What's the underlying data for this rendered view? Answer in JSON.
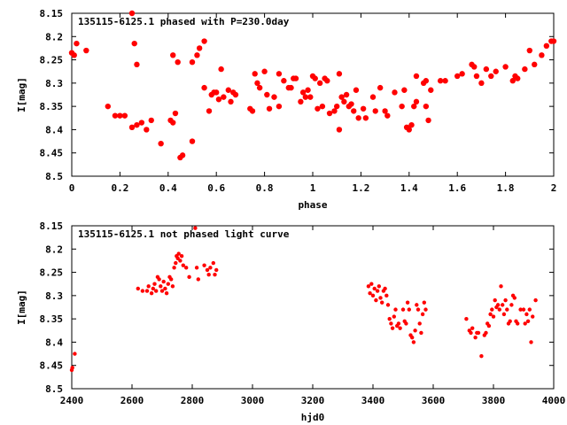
{
  "chart_data": [
    {
      "type": "scatter",
      "title": "135115-6125.1 phased with P=230.0day",
      "xlabel": "phase",
      "ylabel": "I[mag]",
      "xlim": [
        0,
        2
      ],
      "ylim": [
        8.15,
        8.5
      ],
      "y_inverted": true,
      "x_ticks": [
        "0",
        "0.2",
        "0.4",
        "0.6",
        "0.8",
        "1",
        "1.2",
        "1.4",
        "1.6",
        "1.8",
        "2"
      ],
      "y_ticks": [
        "8.15",
        "8.2",
        "8.25",
        "8.3",
        "8.35",
        "8.4",
        "8.45",
        "8.5"
      ],
      "marker_color": "#ff0000",
      "points": [
        [
          0.0,
          8.235
        ],
        [
          0.01,
          8.24
        ],
        [
          0.02,
          8.215
        ],
        [
          0.06,
          8.23
        ],
        [
          0.15,
          8.35
        ],
        [
          0.18,
          8.37
        ],
        [
          0.2,
          8.37
        ],
        [
          0.22,
          8.37
        ],
        [
          0.25,
          8.15
        ],
        [
          0.26,
          8.215
        ],
        [
          0.27,
          8.26
        ],
        [
          0.25,
          8.395
        ],
        [
          0.27,
          8.39
        ],
        [
          0.29,
          8.385
        ],
        [
          0.31,
          8.4
        ],
        [
          0.33,
          8.38
        ],
        [
          0.37,
          8.43
        ],
        [
          0.41,
          8.38
        ],
        [
          0.42,
          8.385
        ],
        [
          0.43,
          8.365
        ],
        [
          0.42,
          8.24
        ],
        [
          0.44,
          8.255
        ],
        [
          0.45,
          8.46
        ],
        [
          0.46,
          8.455
        ],
        [
          0.5,
          8.425
        ],
        [
          0.5,
          8.255
        ],
        [
          0.52,
          8.24
        ],
        [
          0.53,
          8.225
        ],
        [
          0.55,
          8.21
        ],
        [
          0.55,
          8.31
        ],
        [
          0.57,
          8.36
        ],
        [
          0.58,
          8.325
        ],
        [
          0.59,
          8.32
        ],
        [
          0.6,
          8.32
        ],
        [
          0.61,
          8.335
        ],
        [
          0.62,
          8.27
        ],
        [
          0.63,
          8.33
        ],
        [
          0.65,
          8.315
        ],
        [
          0.66,
          8.34
        ],
        [
          0.67,
          8.32
        ],
        [
          0.68,
          8.325
        ],
        [
          0.74,
          8.355
        ],
        [
          0.75,
          8.36
        ],
        [
          0.76,
          8.28
        ],
        [
          0.77,
          8.3
        ],
        [
          0.78,
          8.31
        ],
        [
          0.8,
          8.275
        ],
        [
          0.81,
          8.325
        ],
        [
          0.82,
          8.355
        ],
        [
          0.84,
          8.33
        ],
        [
          0.86,
          8.35
        ],
        [
          0.86,
          8.28
        ],
        [
          0.88,
          8.295
        ],
        [
          0.9,
          8.31
        ],
        [
          0.91,
          8.31
        ],
        [
          0.92,
          8.29
        ],
        [
          0.93,
          8.29
        ],
        [
          0.95,
          8.34
        ],
        [
          0.96,
          8.32
        ],
        [
          0.97,
          8.33
        ],
        [
          0.98,
          8.315
        ],
        [
          0.99,
          8.33
        ],
        [
          1.0,
          8.285
        ],
        [
          1.01,
          8.29
        ],
        [
          1.02,
          8.355
        ],
        [
          1.03,
          8.3
        ],
        [
          1.04,
          8.35
        ],
        [
          1.05,
          8.29
        ],
        [
          1.06,
          8.295
        ],
        [
          1.07,
          8.365
        ],
        [
          1.09,
          8.36
        ],
        [
          1.1,
          8.35
        ],
        [
          1.11,
          8.28
        ],
        [
          1.11,
          8.4
        ],
        [
          1.12,
          8.33
        ],
        [
          1.13,
          8.34
        ],
        [
          1.14,
          8.325
        ],
        [
          1.15,
          8.35
        ],
        [
          1.16,
          8.345
        ],
        [
          1.17,
          8.36
        ],
        [
          1.18,
          8.315
        ],
        [
          1.19,
          8.375
        ],
        [
          1.21,
          8.355
        ],
        [
          1.22,
          8.375
        ],
        [
          1.25,
          8.33
        ],
        [
          1.26,
          8.36
        ],
        [
          1.28,
          8.31
        ],
        [
          1.3,
          8.36
        ],
        [
          1.31,
          8.37
        ],
        [
          1.34,
          8.32
        ],
        [
          1.37,
          8.35
        ],
        [
          1.38,
          8.315
        ],
        [
          1.39,
          8.395
        ],
        [
          1.4,
          8.4
        ],
        [
          1.41,
          8.39
        ],
        [
          1.42,
          8.35
        ],
        [
          1.43,
          8.34
        ],
        [
          1.43,
          8.285
        ],
        [
          1.46,
          8.3
        ],
        [
          1.47,
          8.35
        ],
        [
          1.48,
          8.38
        ],
        [
          1.49,
          8.315
        ],
        [
          1.47,
          8.295
        ],
        [
          1.53,
          8.295
        ],
        [
          1.55,
          8.295
        ],
        [
          1.6,
          8.285
        ],
        [
          1.62,
          8.28
        ],
        [
          1.66,
          8.26
        ],
        [
          1.67,
          8.265
        ],
        [
          1.68,
          8.285
        ],
        [
          1.7,
          8.3
        ],
        [
          1.72,
          8.27
        ],
        [
          1.74,
          8.285
        ],
        [
          1.76,
          8.275
        ],
        [
          1.8,
          8.265
        ],
        [
          1.83,
          8.295
        ],
        [
          1.84,
          8.285
        ],
        [
          1.85,
          8.29
        ],
        [
          1.88,
          8.27
        ],
        [
          1.9,
          8.23
        ],
        [
          1.92,
          8.26
        ],
        [
          1.95,
          8.24
        ],
        [
          1.97,
          8.22
        ],
        [
          1.99,
          8.21
        ],
        [
          2.0,
          8.21
        ]
      ]
    },
    {
      "type": "scatter",
      "title": "135115-6125.1 not phased light curve",
      "xlabel": "hjd0",
      "ylabel": "I[mag]",
      "xlim": [
        2400,
        4000
      ],
      "ylim": [
        8.15,
        8.5
      ],
      "y_inverted": true,
      "x_ticks": [
        "2400",
        "2600",
        "2800",
        "3000",
        "3200",
        "3400",
        "3600",
        "3800",
        "4000"
      ],
      "y_ticks": [
        "8.15",
        "8.2",
        "8.25",
        "8.3",
        "8.35",
        "8.4",
        "8.45",
        "8.5"
      ],
      "marker_color": "#ff0000",
      "points": [
        [
          2400,
          8.46
        ],
        [
          2402,
          8.455
        ],
        [
          2410,
          8.425
        ],
        [
          2620,
          8.285
        ],
        [
          2635,
          8.29
        ],
        [
          2650,
          8.29
        ],
        [
          2655,
          8.28
        ],
        [
          2665,
          8.295
        ],
        [
          2670,
          8.285
        ],
        [
          2675,
          8.275
        ],
        [
          2680,
          8.29
        ],
        [
          2685,
          8.26
        ],
        [
          2690,
          8.265
        ],
        [
          2695,
          8.28
        ],
        [
          2700,
          8.29
        ],
        [
          2705,
          8.27
        ],
        [
          2710,
          8.285
        ],
        [
          2715,
          8.295
        ],
        [
          2720,
          8.275
        ],
        [
          2725,
          8.26
        ],
        [
          2730,
          8.265
        ],
        [
          2735,
          8.28
        ],
        [
          2740,
          8.24
        ],
        [
          2745,
          8.23
        ],
        [
          2748,
          8.215
        ],
        [
          2752,
          8.22
        ],
        [
          2755,
          8.21
        ],
        [
          2760,
          8.225
        ],
        [
          2765,
          8.215
        ],
        [
          2770,
          8.235
        ],
        [
          2780,
          8.24
        ],
        [
          2790,
          8.26
        ],
        [
          2810,
          8.155
        ],
        [
          2815,
          8.24
        ],
        [
          2820,
          8.265
        ],
        [
          2840,
          8.235
        ],
        [
          2850,
          8.245
        ],
        [
          2855,
          8.255
        ],
        [
          2860,
          8.24
        ],
        [
          2870,
          8.23
        ],
        [
          2875,
          8.255
        ],
        [
          2880,
          8.245
        ],
        [
          3385,
          8.28
        ],
        [
          3390,
          8.295
        ],
        [
          3395,
          8.275
        ],
        [
          3400,
          8.3
        ],
        [
          3405,
          8.285
        ],
        [
          3410,
          8.31
        ],
        [
          3415,
          8.29
        ],
        [
          3420,
          8.28
        ],
        [
          3425,
          8.305
        ],
        [
          3430,
          8.315
        ],
        [
          3435,
          8.29
        ],
        [
          3440,
          8.285
        ],
        [
          3445,
          8.3
        ],
        [
          3450,
          8.32
        ],
        [
          3455,
          8.35
        ],
        [
          3460,
          8.36
        ],
        [
          3465,
          8.37
        ],
        [
          3470,
          8.345
        ],
        [
          3475,
          8.33
        ],
        [
          3480,
          8.365
        ],
        [
          3485,
          8.36
        ],
        [
          3490,
          8.37
        ],
        [
          3500,
          8.33
        ],
        [
          3505,
          8.355
        ],
        [
          3510,
          8.36
        ],
        [
          3515,
          8.315
        ],
        [
          3520,
          8.33
        ],
        [
          3525,
          8.385
        ],
        [
          3530,
          8.39
        ],
        [
          3535,
          8.4
        ],
        [
          3540,
          8.375
        ],
        [
          3545,
          8.32
        ],
        [
          3550,
          8.33
        ],
        [
          3555,
          8.36
        ],
        [
          3560,
          8.38
        ],
        [
          3565,
          8.34
        ],
        [
          3570,
          8.315
        ],
        [
          3575,
          8.33
        ],
        [
          3710,
          8.35
        ],
        [
          3720,
          8.375
        ],
        [
          3725,
          8.38
        ],
        [
          3730,
          8.37
        ],
        [
          3740,
          8.39
        ],
        [
          3745,
          8.38
        ],
        [
          3750,
          8.38
        ],
        [
          3760,
          8.43
        ],
        [
          3770,
          8.385
        ],
        [
          3775,
          8.38
        ],
        [
          3780,
          8.36
        ],
        [
          3785,
          8.365
        ],
        [
          3790,
          8.34
        ],
        [
          3795,
          8.33
        ],
        [
          3800,
          8.345
        ],
        [
          3805,
          8.31
        ],
        [
          3810,
          8.325
        ],
        [
          3815,
          8.32
        ],
        [
          3820,
          8.33
        ],
        [
          3825,
          8.28
        ],
        [
          3830,
          8.32
        ],
        [
          3835,
          8.34
        ],
        [
          3840,
          8.31
        ],
        [
          3845,
          8.33
        ],
        [
          3850,
          8.36
        ],
        [
          3855,
          8.355
        ],
        [
          3860,
          8.32
        ],
        [
          3865,
          8.3
        ],
        [
          3870,
          8.305
        ],
        [
          3875,
          8.355
        ],
        [
          3880,
          8.36
        ],
        [
          3890,
          8.33
        ],
        [
          3900,
          8.33
        ],
        [
          3905,
          8.36
        ],
        [
          3910,
          8.34
        ],
        [
          3915,
          8.355
        ],
        [
          3920,
          8.33
        ],
        [
          3925,
          8.4
        ],
        [
          3930,
          8.345
        ],
        [
          3940,
          8.31
        ]
      ]
    }
  ]
}
